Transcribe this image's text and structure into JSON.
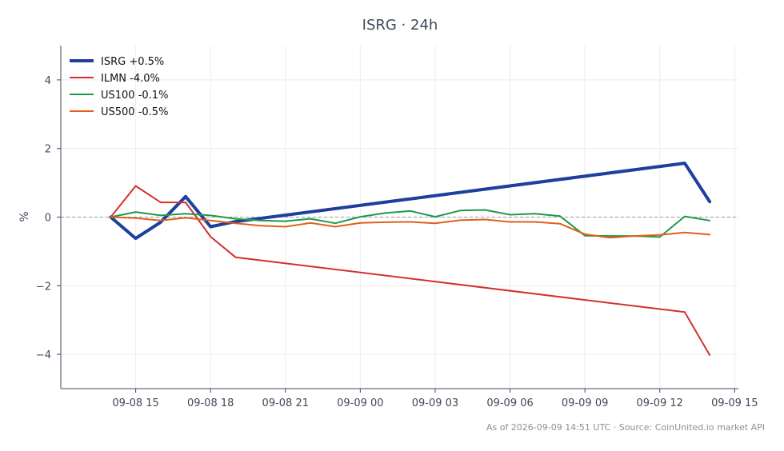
{
  "chart_data": {
    "type": "line",
    "title": "ISRG · 24h",
    "xlabel": "",
    "ylabel": "%",
    "ylim": [
      -5,
      5
    ],
    "y_ticks": [
      4,
      2,
      0,
      -2,
      -4
    ],
    "y_tick_labels": [
      "4",
      "2",
      "0",
      "−2",
      "−4"
    ],
    "x_ticks": [
      15,
      18,
      21,
      24,
      27,
      30,
      33,
      36,
      39
    ],
    "x_tick_labels": [
      "09-08 15",
      "09-08 18",
      "09-08 21",
      "09-09 00",
      "09-09 03",
      "09-09 06",
      "09-09 09",
      "09-09 12",
      "09-09 15"
    ],
    "xlim": [
      12.0,
      39.15
    ],
    "grid": true,
    "zero_line": true,
    "legend_position": "top-left",
    "series": [
      {
        "name": "ISRG +0.5%",
        "color": "#1f3f9e",
        "line_width": 4,
        "x": [
          14,
          15,
          16,
          17,
          18,
          19,
          37,
          38
        ],
        "y": [
          0,
          -0.62,
          -0.15,
          0.6,
          -0.28,
          -0.13,
          1.57,
          0.45
        ]
      },
      {
        "name": "ILMN -4.0%",
        "color": "#d2302f",
        "line_width": 2,
        "x": [
          14,
          15,
          16,
          17,
          18,
          19,
          37,
          38
        ],
        "y": [
          0,
          0.91,
          0.43,
          0.43,
          -0.57,
          -1.17,
          -2.77,
          -4.02
        ]
      },
      {
        "name": "US100 -0.1%",
        "color": "#1f9a4a",
        "line_width": 2,
        "x": [
          14,
          15,
          16,
          17,
          18,
          19,
          20,
          21,
          22,
          23,
          24,
          25,
          26,
          27,
          28,
          29,
          30,
          31,
          32,
          33,
          34,
          35,
          36,
          37,
          38
        ],
        "y": [
          0,
          0.15,
          0.05,
          0.1,
          0.05,
          -0.05,
          -0.1,
          -0.12,
          -0.05,
          -0.18,
          0.01,
          0.12,
          0.18,
          0.01,
          0.19,
          0.21,
          0.07,
          0.1,
          0.03,
          -0.54,
          -0.55,
          -0.55,
          -0.58,
          0.02,
          -0.1
        ]
      },
      {
        "name": "US500 -0.5%",
        "color": "#e0601c",
        "line_width": 2,
        "x": [
          14,
          15,
          16,
          17,
          18,
          19,
          20,
          21,
          22,
          23,
          24,
          25,
          26,
          27,
          28,
          29,
          30,
          31,
          32,
          33,
          34,
          35,
          36,
          37,
          38
        ],
        "y": [
          0,
          -0.03,
          -0.1,
          -0.02,
          -0.1,
          -0.18,
          -0.25,
          -0.28,
          -0.17,
          -0.28,
          -0.17,
          -0.15,
          -0.14,
          -0.18,
          -0.09,
          -0.07,
          -0.14,
          -0.14,
          -0.19,
          -0.5,
          -0.6,
          -0.55,
          -0.52,
          -0.45,
          -0.51
        ]
      }
    ]
  },
  "footnote": "As of 2026-09-09 14:51 UTC · Source: CoinUnited.io market API"
}
